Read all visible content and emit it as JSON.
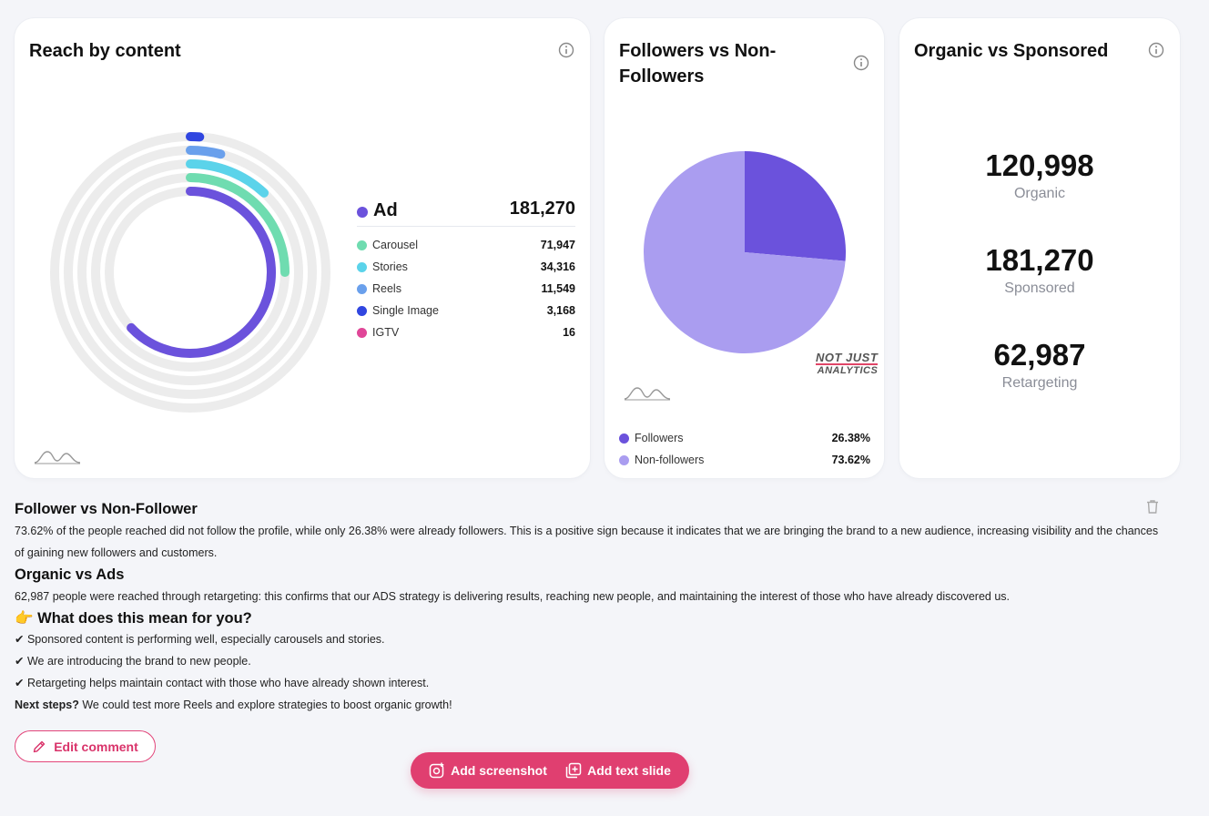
{
  "reach_card": {
    "title": "Reach by content",
    "ad_label": "Ad",
    "ad_value": "181,270",
    "legend": [
      {
        "label": "Carousel",
        "value": "71,947",
        "color": "#6fdcb0"
      },
      {
        "label": "Stories",
        "value": "34,316",
        "color": "#5bd3ea"
      },
      {
        "label": "Reels",
        "value": "11,549",
        "color": "#6aa0ec"
      },
      {
        "label": "Single Image",
        "value": "3,168",
        "color": "#3046e0"
      },
      {
        "label": "IGTV",
        "value": "16",
        "color": "#e04698"
      }
    ],
    "ad_color": "#6b52dc"
  },
  "chart_data": {
    "type": "pie",
    "categories": [
      "Followers",
      "Non-followers"
    ],
    "values": [
      26.38,
      73.62
    ],
    "colors": [
      "#6b52dc",
      "#aa9df0"
    ]
  },
  "followers_card": {
    "title": "Followers vs Non-Followers",
    "watermark_line1": "NOT JUST",
    "watermark_line2": "ANALYTICS",
    "legend": [
      {
        "label": "Followers",
        "value": "26.38%"
      },
      {
        "label": "Non-followers",
        "value": "73.62%"
      }
    ]
  },
  "organic_card": {
    "title": "Organic vs Sponsored",
    "stats": [
      {
        "value": "120,998",
        "label": "Organic"
      },
      {
        "value": "181,270",
        "label": "Sponsored"
      },
      {
        "value": "62,987",
        "label": "Retargeting"
      }
    ]
  },
  "comment": {
    "h1": "Follower vs Non-Follower",
    "p1": "73.62% of the people reached did not follow the profile, while only 26.38% were already followers. This is a positive sign because it indicates that we are bringing the brand to a new audience, increasing visibility and the chances of gaining new followers and customers.",
    "h2": "Organic vs Ads",
    "p2": "62,987 people were reached through retargeting: this confirms that our ADS strategy is delivering results, reaching new people, and maintaining the interest of those who have already discovered us.",
    "h3_emoji": "👉",
    "h3": "What does this mean for you?",
    "checks": [
      "Sponsored content is performing well, especially carousels and stories.",
      "We are introducing the brand to new people.",
      "Retargeting helps maintain contact with those who have already shown interest."
    ],
    "next_label": "Next steps?",
    "next_text": " We could test more Reels and explore strategies to boost organic growth!"
  },
  "buttons": {
    "edit_comment": "Edit comment",
    "add_screenshot": "Add screenshot",
    "add_text_slide": "Add text slide"
  }
}
